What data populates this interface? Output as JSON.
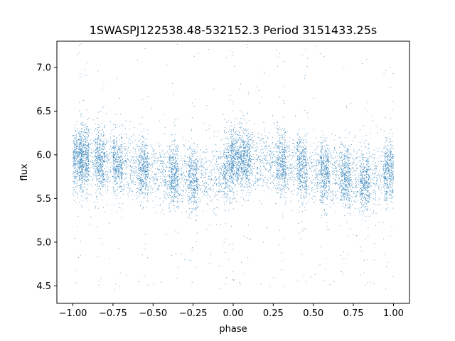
{
  "chart_data": {
    "type": "scatter",
    "title": "1SWASPJ122538.48-532152.3 Period 3151433.25s",
    "xlabel": "phase",
    "ylabel": "flux",
    "xlim": [
      -1.1,
      1.1
    ],
    "ylim": [
      4.3,
      7.3
    ],
    "xticks": [
      -1.0,
      -0.75,
      -0.5,
      -0.25,
      0.0,
      0.25,
      0.5,
      0.75,
      1.0
    ],
    "xtick_labels": [
      "−1.00",
      "−0.75",
      "−0.50",
      "−0.25",
      "0.00",
      "0.25",
      "0.50",
      "0.75",
      "1.00"
    ],
    "yticks": [
      4.5,
      5.0,
      5.5,
      6.0,
      6.5,
      7.0
    ],
    "ytick_labels": [
      "4.5",
      "5.0",
      "5.5",
      "6.0",
      "6.5",
      "7.0"
    ],
    "grid": false,
    "marker_color": "#1f77b4",
    "series": [
      {
        "profile_phase": [
          -1.0,
          -0.9,
          -0.75,
          -0.6,
          -0.5,
          -0.35,
          -0.25,
          -0.1,
          0.0,
          0.05,
          0.15,
          0.25,
          0.4,
          0.5,
          0.6,
          0.75,
          0.9,
          1.0
        ],
        "profile_flux": [
          5.95,
          5.95,
          5.93,
          5.85,
          5.82,
          5.76,
          5.72,
          5.74,
          5.95,
          5.97,
          5.9,
          5.92,
          5.88,
          5.8,
          5.78,
          5.72,
          5.74,
          5.84
        ],
        "flux_spread": 0.18,
        "dense_columns": [
          -0.97,
          -0.93,
          -0.83,
          -0.72,
          -0.56,
          -0.37,
          -0.25,
          -0.03,
          0.02,
          0.08,
          0.3,
          0.43,
          0.57,
          0.7,
          0.82,
          0.97
        ],
        "flux_range": [
          4.45,
          7.27
        ],
        "approx_point_count": 9000
      }
    ]
  }
}
